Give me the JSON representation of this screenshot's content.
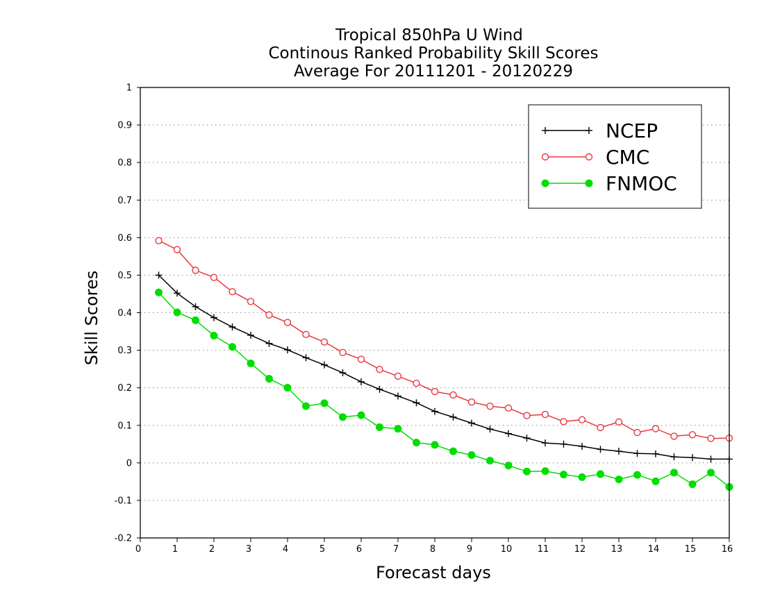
{
  "chart_data": {
    "type": "line",
    "title_lines": [
      "Tropical 850hPa U Wind",
      "Continous Ranked Probability Skill Scores",
      "Average For 20111201 - 20120229"
    ],
    "xlabel": "Forecast days",
    "ylabel": "Skill Scores",
    "xlim": [
      0,
      16
    ],
    "ylim": [
      -0.2,
      1
    ],
    "xticks": [
      "0",
      "1",
      "2",
      "3",
      "4",
      "5",
      "6",
      "7",
      "8",
      "9",
      "10",
      "11",
      "12",
      "13",
      "14",
      "15",
      "16"
    ],
    "yticks": [
      "-0.2",
      "-0.1",
      "0",
      "0.1",
      "0.2",
      "0.3",
      "0.4",
      "0.5",
      "0.6",
      "0.7",
      "0.8",
      "0.9",
      "1"
    ],
    "grid": "horizontal dotted",
    "legend_position": "top-right",
    "x": [
      0.5,
      1,
      1.5,
      2,
      2.5,
      3,
      3.5,
      4,
      4.5,
      5,
      5.5,
      6,
      6.5,
      7,
      7.5,
      8,
      8.5,
      9,
      9.5,
      10,
      10.5,
      11,
      11.5,
      12,
      12.5,
      13,
      13.5,
      14,
      14.5,
      15,
      15.5,
      16
    ],
    "series": [
      {
        "name": "NCEP",
        "color": "#000000",
        "marker": "plus",
        "values": [
          0.5,
          0.452,
          0.416,
          0.387,
          0.362,
          0.34,
          0.318,
          0.301,
          0.28,
          0.261,
          0.24,
          0.216,
          0.196,
          0.178,
          0.16,
          0.137,
          0.122,
          0.106,
          0.09,
          0.078,
          0.066,
          0.053,
          0.05,
          0.044,
          0.036,
          0.031,
          0.025,
          0.024,
          0.016,
          0.014,
          0.01,
          0.01
        ]
      },
      {
        "name": "CMC",
        "color": "#e8383d",
        "marker": "open-circle",
        "values": [
          0.592,
          0.568,
          0.513,
          0.494,
          0.456,
          0.43,
          0.394,
          0.374,
          0.342,
          0.322,
          0.294,
          0.276,
          0.249,
          0.231,
          0.212,
          0.19,
          0.181,
          0.162,
          0.151,
          0.146,
          0.126,
          0.129,
          0.11,
          0.115,
          0.094,
          0.109,
          0.081,
          0.091,
          0.071,
          0.075,
          0.065,
          0.066
        ]
      },
      {
        "name": "FNMOC",
        "color": "#00dd00",
        "marker": "filled-circle",
        "values": [
          0.454,
          0.401,
          0.38,
          0.339,
          0.309,
          0.265,
          0.224,
          0.2,
          0.151,
          0.159,
          0.122,
          0.127,
          0.095,
          0.091,
          0.054,
          0.048,
          0.031,
          0.021,
          0.006,
          -0.007,
          -0.023,
          -0.022,
          -0.031,
          -0.038,
          -0.03,
          -0.044,
          -0.032,
          -0.049,
          -0.026,
          -0.057,
          -0.026,
          -0.064
        ]
      }
    ]
  }
}
